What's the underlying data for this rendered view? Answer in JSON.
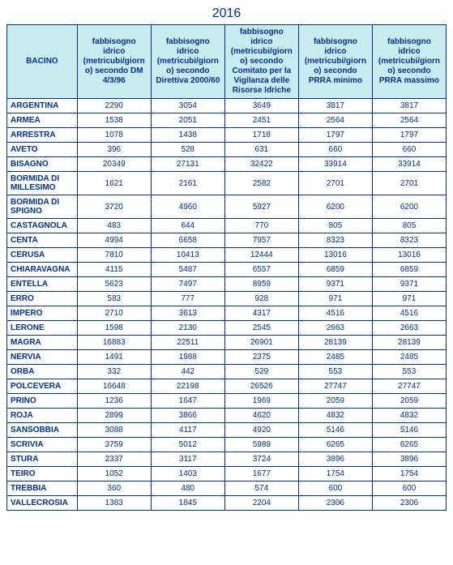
{
  "title": "2016",
  "colors": {
    "border": "#003087",
    "text": "#003087",
    "header_bg": "#c8ebf0",
    "page_bg": "#ffffff"
  },
  "headers": [
    "BACINO",
    "fabbisogno idrico (metricubi/giorno) secondo DM 4/3/96",
    "fabbisogno idrico (metricubi/giorno) secondo Direttiva 2000/60",
    "fabbisogno idrico (metricubi/giorno) secondo Comitato per la Vigilanza delle Risorse Idriche",
    "fabbisogno idrico (metricubi/giorno) secondo PRRA minimo",
    "fabbisogno idrico (metricubi/giorno) secondo PRRA massimo"
  ],
  "rows": [
    [
      "ARGENTINA",
      "2290",
      "3054",
      "3649",
      "3817",
      "3817"
    ],
    [
      "ARMEA",
      "1538",
      "2051",
      "2451",
      "2564",
      "2564"
    ],
    [
      "ARRESTRA",
      "1078",
      "1438",
      "1718",
      "1797",
      "1797"
    ],
    [
      "AVETO",
      "396",
      "528",
      "631",
      "660",
      "660"
    ],
    [
      "BISAGNO",
      "20349",
      "27131",
      "32422",
      "33914",
      "33914"
    ],
    [
      "BORMIDA DI MILLESIMO",
      "1621",
      "2161",
      "2582",
      "2701",
      "2701"
    ],
    [
      "BORMIDA DI SPIGNO",
      "3720",
      "4960",
      "5927",
      "6200",
      "6200"
    ],
    [
      "CASTAGNOLA",
      "483",
      "644",
      "770",
      "805",
      "805"
    ],
    [
      "CENTA",
      "4994",
      "6658",
      "7957",
      "8323",
      "8323"
    ],
    [
      "CERUSA",
      "7810",
      "10413",
      "12444",
      "13016",
      "13016"
    ],
    [
      "CHIARAVAGNA",
      "4115",
      "5487",
      "6557",
      "6859",
      "6859"
    ],
    [
      "ENTELLA",
      "5623",
      "7497",
      "8959",
      "9371",
      "9371"
    ],
    [
      "ERRO",
      "583",
      "777",
      "928",
      "971",
      "971"
    ],
    [
      "IMPERO",
      "2710",
      "3613",
      "4317",
      "4516",
      "4516"
    ],
    [
      "LERONE",
      "1598",
      "2130",
      "2545",
      "2663",
      "2663"
    ],
    [
      "MAGRA",
      "16883",
      "22511",
      "26901",
      "28139",
      "28139"
    ],
    [
      "NERVIA",
      "1491",
      "1988",
      "2375",
      "2485",
      "2485"
    ],
    [
      "ORBA",
      "332",
      "442",
      "529",
      "553",
      "553"
    ],
    [
      "POLCEVERA",
      "16648",
      "22198",
      "26526",
      "27747",
      "27747"
    ],
    [
      "PRINO",
      "1236",
      "1647",
      "1969",
      "2059",
      "2059"
    ],
    [
      "ROJA",
      "2899",
      "3866",
      "4620",
      "4832",
      "4832"
    ],
    [
      "SANSOBBIA",
      "3088",
      "4117",
      "4920",
      "5146",
      "5146"
    ],
    [
      "SCRIVIA",
      "3759",
      "5012",
      "5989",
      "6265",
      "6265"
    ],
    [
      "STURA",
      "2337",
      "3117",
      "3724",
      "3896",
      "3896"
    ],
    [
      "TEIRO",
      "1052",
      "1403",
      "1677",
      "1754",
      "1754"
    ],
    [
      "TREBBIA",
      "360",
      "480",
      "574",
      "600",
      "600"
    ],
    [
      "VALLECROSIA",
      "1383",
      "1845",
      "2204",
      "2306",
      "2306"
    ]
  ]
}
